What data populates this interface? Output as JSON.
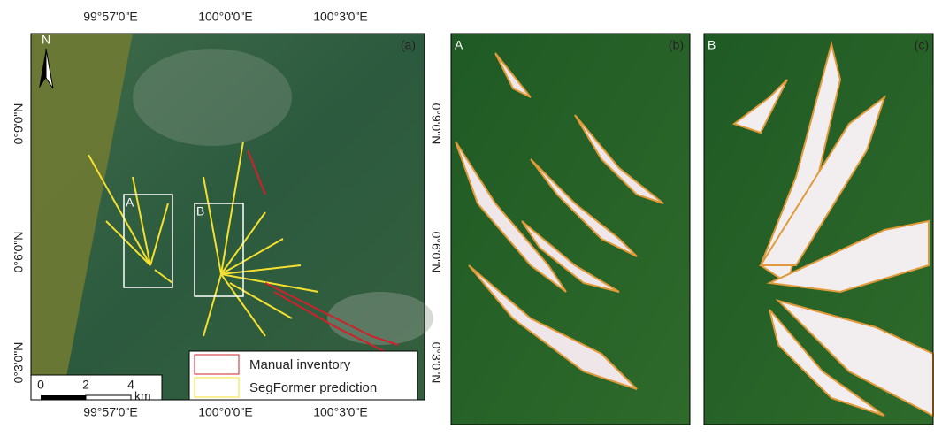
{
  "map": {
    "lon_labels": [
      "99°57'0\"E",
      "100°0'0\"E",
      "100°3'0\"E"
    ],
    "lat_labels": [
      "0°9'0\"N",
      "0°6'0\"N",
      "0°3'0\"N"
    ],
    "north": "N",
    "boxes": [
      "A",
      "B"
    ],
    "scale_bar": {
      "ticks": [
        0,
        2,
        4
      ],
      "unit": "km"
    },
    "legend": [
      "Manual inventory",
      "SegFormer prediction"
    ]
  },
  "panels": [
    "(a)",
    "(b)",
    "(c)"
  ],
  "insets": [
    "A",
    "B"
  ]
}
